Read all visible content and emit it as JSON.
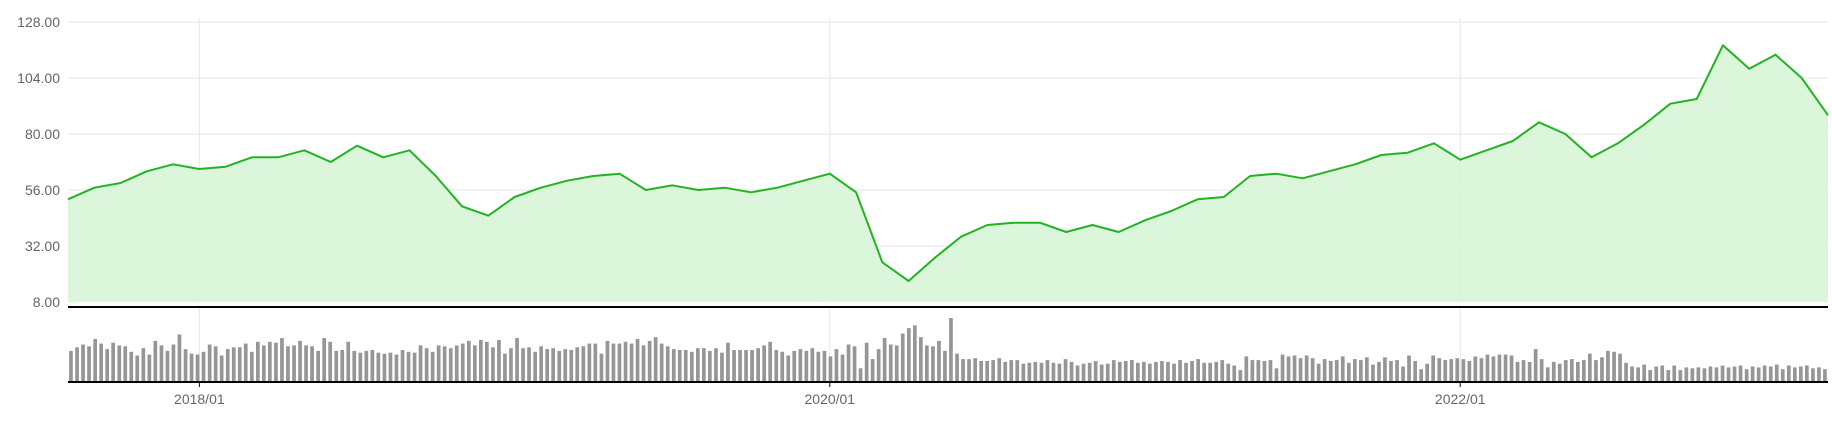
{
  "chart_data": [
    {
      "type": "area",
      "title": "",
      "xlabel": "",
      "ylabel": "",
      "x_range": [
        "2017-08",
        "2023-03"
      ],
      "ylim": [
        8,
        128
      ],
      "yticks": [
        "8.00",
        "32.00",
        "56.00",
        "80.00",
        "104.00",
        "128.00"
      ],
      "xticks": [
        "2018/01",
        "2020/01",
        "2022/01"
      ],
      "grid": true,
      "legend": "none",
      "colors": {
        "line": "#22b322",
        "fill": "#d7f5d7",
        "grid": "#e6e6e6",
        "axis": "#000000"
      },
      "series": [
        {
          "x": [
            "2017-08",
            "2017-09",
            "2017-10",
            "2017-11",
            "2017-12",
            "2018-01",
            "2018-02",
            "2018-03",
            "2018-04",
            "2018-05",
            "2018-06",
            "2018-07",
            "2018-08",
            "2018-09",
            "2018-10",
            "2018-11",
            "2018-12",
            "2019-01",
            "2019-02",
            "2019-03",
            "2019-04",
            "2019-05",
            "2019-06",
            "2019-07",
            "2019-08",
            "2019-09",
            "2019-10",
            "2019-11",
            "2019-12",
            "2020-01",
            "2020-02",
            "2020-03",
            "2020-04",
            "2020-05",
            "2020-06",
            "2020-07",
            "2020-08",
            "2020-09",
            "2020-10",
            "2020-11",
            "2020-12",
            "2021-01",
            "2021-02",
            "2021-03",
            "2021-04",
            "2021-05",
            "2021-06",
            "2021-07",
            "2021-08",
            "2021-09",
            "2021-10",
            "2021-11",
            "2021-12",
            "2022-01",
            "2022-02",
            "2022-03",
            "2022-04",
            "2022-05",
            "2022-06",
            "2022-07",
            "2022-08",
            "2022-09",
            "2022-10",
            "2022-11",
            "2022-12",
            "2023-01",
            "2023-02",
            "2023-03"
          ],
          "values": [
            52,
            57,
            59,
            64,
            67,
            65,
            66,
            70,
            70,
            73,
            68,
            75,
            70,
            73,
            62,
            49,
            45,
            53,
            57,
            60,
            62,
            63,
            56,
            58,
            56,
            57,
            55,
            57,
            60,
            63,
            55,
            25,
            17,
            27,
            36,
            41,
            42,
            42,
            38,
            41,
            38,
            43,
            47,
            52,
            53,
            62,
            63,
            61,
            64,
            67,
            71,
            72,
            76,
            69,
            73,
            77,
            85,
            80,
            70,
            76,
            84,
            93,
            95,
            118,
            108,
            114,
            104,
            88
          ]
        }
      ]
    },
    {
      "type": "bar",
      "title": "",
      "xlabel": "",
      "ylabel": "",
      "values": [
        34,
        38,
        41,
        39,
        47,
        42,
        36,
        43,
        40,
        39,
        33,
        29,
        37,
        30,
        45,
        40,
        34,
        41,
        52,
        36,
        31,
        30,
        33,
        41,
        39,
        29,
        36,
        38,
        38,
        42,
        33,
        44,
        40,
        44,
        43,
        48,
        39,
        40,
        45,
        40,
        39,
        34,
        48,
        44,
        34,
        35,
        44,
        34,
        32,
        34,
        35,
        32,
        31,
        32,
        30,
        35,
        33,
        32,
        40,
        37,
        33,
        40,
        39,
        37,
        40,
        42,
        45,
        40,
        46,
        44,
        38,
        46,
        31,
        37,
        48,
        37,
        38,
        33,
        39,
        36,
        37,
        34,
        36,
        35,
        38,
        39,
        42,
        42,
        31,
        45,
        42,
        42,
        44,
        42,
        47,
        40,
        45,
        49,
        42,
        39,
        36,
        35,
        35,
        33,
        37,
        37,
        34,
        37,
        32,
        43,
        35,
        35,
        35,
        35,
        37,
        40,
        44,
        35,
        33,
        29,
        34,
        36,
        34,
        37,
        33,
        34,
        28,
        36,
        30,
        41,
        39,
        15,
        43,
        25,
        36,
        48,
        41,
        40,
        53,
        59,
        62,
        49,
        40,
        39,
        45,
        34,
        70,
        31,
        25,
        25,
        26,
        23,
        23,
        24,
        26,
        22,
        24,
        24,
        20,
        21,
        22,
        21,
        24,
        21,
        20,
        25,
        22,
        18,
        20,
        21,
        23,
        19,
        20,
        24,
        22,
        23,
        24,
        21,
        22,
        20,
        22,
        23,
        22,
        20,
        24,
        21,
        23,
        25,
        21,
        21,
        22,
        24,
        20,
        18,
        13,
        28,
        24,
        24,
        23,
        24,
        15,
        30,
        28,
        29,
        26,
        29,
        26,
        20,
        25,
        23,
        24,
        28,
        21,
        25,
        24,
        27,
        19,
        22,
        27,
        23,
        24,
        17,
        29,
        23,
        14,
        20,
        29,
        26,
        24,
        25,
        26,
        25,
        23,
        28,
        26,
        30,
        28,
        30,
        30,
        29,
        22,
        24,
        22,
        36,
        25,
        16,
        22,
        20,
        24,
        25,
        22,
        24,
        31,
        24,
        27,
        34,
        33,
        31,
        21,
        17,
        16,
        19,
        13,
        17,
        18,
        13,
        18,
        13,
        16,
        15,
        16,
        15,
        17,
        16,
        18,
        16,
        17,
        18,
        14,
        17,
        16,
        18,
        17,
        19,
        14,
        18,
        16,
        17,
        18,
        15,
        16,
        14
      ]
    }
  ]
}
